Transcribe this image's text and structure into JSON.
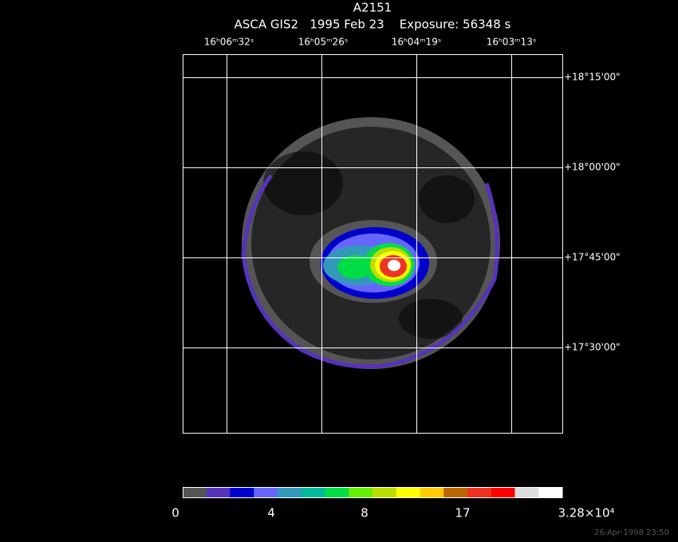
{
  "title": "A2151",
  "subtitle": "ASCA GIS2   1995 Feb 23    Exposure: 56348 s",
  "ra_labels": [
    "16ʰ06ᵐ32ˢ",
    "16ʰ05ᵐ26ˢ",
    "16ʰ04ᵐ19ˢ",
    "16ʰ03ᵐ13ˢ"
  ],
  "dec_labels": [
    "+18°15'00\"",
    "+18°00'00\"",
    "+17°45'00\"",
    "+17°30'00\""
  ],
  "colorbar": {
    "colors": [
      "#555555",
      "#5533bb",
      "#0000cc",
      "#6666ff",
      "#3399bb",
      "#00bb99",
      "#00dd44",
      "#66ee00",
      "#bbdd00",
      "#ffff00",
      "#ffcc00",
      "#bb6600",
      "#ee3322",
      "#ff0000",
      "#dddddd",
      "#ffffff"
    ],
    "labels": [
      "0",
      "4",
      "8",
      "17",
      "3.28×10⁴"
    ]
  },
  "timestamp": "26-Apr-1998 23:50"
}
